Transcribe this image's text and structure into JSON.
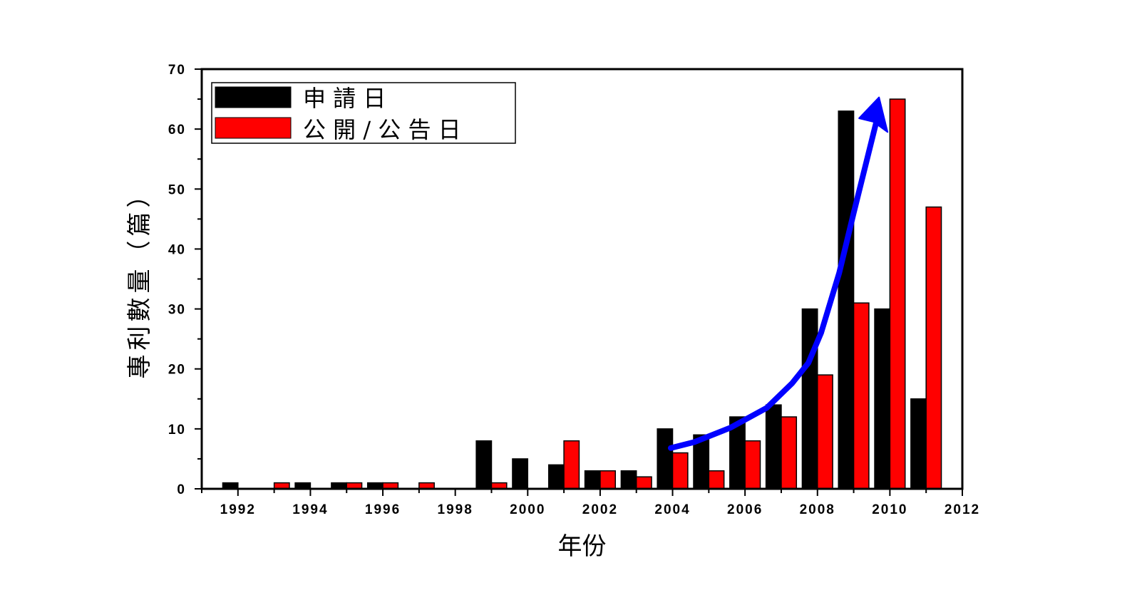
{
  "chart_data": {
    "type": "bar",
    "title": "",
    "xlabel": "年份",
    "ylabel": "專利數量（篇）",
    "categories": [
      "1992",
      "1993",
      "1994",
      "1995",
      "1996",
      "1997",
      "1998",
      "1999",
      "2000",
      "2001",
      "2002",
      "2003",
      "2004",
      "2005",
      "2006",
      "2007",
      "2008",
      "2009",
      "2010",
      "2011"
    ],
    "series": [
      {
        "name": "申 請 日",
        "color": "#000000",
        "values": [
          1,
          0,
          1,
          1,
          1,
          0,
          0,
          8,
          5,
          4,
          3,
          3,
          10,
          9,
          12,
          14,
          30,
          63,
          30,
          15
        ]
      },
      {
        "name": "公 開 / 公 告 日",
        "color": "#ff0000",
        "values": [
          0,
          1,
          0,
          1,
          1,
          1,
          0,
          1,
          0,
          8,
          3,
          2,
          6,
          3,
          8,
          12,
          19,
          31,
          65,
          47
        ]
      }
    ],
    "xlim": [
      1991,
      2012
    ],
    "ylim": [
      0,
      70
    ],
    "x_ticks": [
      "1992",
      "1994",
      "1996",
      "1998",
      "2000",
      "2002",
      "2004",
      "2006",
      "2008",
      "2010",
      "2012"
    ],
    "y_ticks": [
      "0",
      "10",
      "20",
      "30",
      "40",
      "50",
      "60",
      "70"
    ],
    "legend_position": "top-left",
    "grid": false,
    "annotation": {
      "type": "trend-arrow",
      "color": "#0000ff"
    }
  }
}
